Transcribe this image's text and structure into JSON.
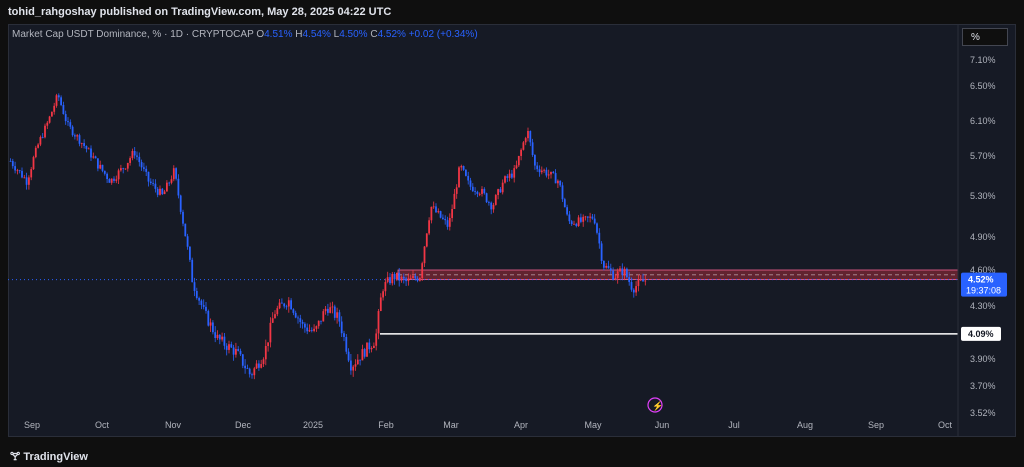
{
  "header": {
    "published_text": "tohid_rahgoshay published on TradingView.com, May 28, 2025 04:22 UTC"
  },
  "legend": {
    "symbol": "Market Cap USDT Dominance, % · 1D · CRYPTOCAP",
    "o_label": "O",
    "o_val": "4.51%",
    "h_label": "H",
    "h_val": "4.54%",
    "l_label": "L",
    "l_val": "4.50%",
    "c_label": "C",
    "c_val": "4.52% +0.02 (+0.34%)"
  },
  "scale_button": "%",
  "footer": {
    "brand": "TradingView"
  },
  "colors": {
    "up": "#2962ff",
    "down": "#f23645",
    "bg": "#161a25",
    "zone": "#f23645",
    "line": "#ffffff"
  },
  "chart_data": {
    "type": "candlestick",
    "title": "Market Cap USDT Dominance, % · 1D · CRYPTOCAP",
    "y_ticks": [
      "7.10%",
      "6.50%",
      "6.10%",
      "5.70%",
      "5.30%",
      "4.90%",
      "4.60%",
      "4.30%",
      "3.90%",
      "3.70%",
      "3.52%"
    ],
    "y_range": [
      3.52,
      7.1
    ],
    "x_ticks": [
      "Sep",
      "Oct",
      "Nov",
      "Dec",
      "2025",
      "Feb",
      "Mar",
      "Apr",
      "May",
      "Jun",
      "Jul",
      "Aug",
      "Sep",
      "Oct"
    ],
    "close_path": [
      {
        "x": "Aug 27",
        "y": 5.65
      },
      {
        "x": "Sep 3",
        "y": 5.45
      },
      {
        "x": "Sep 8",
        "y": 5.85
      },
      {
        "x": "Sep 12",
        "y": 6.1
      },
      {
        "x": "Sep 16",
        "y": 6.4
      },
      {
        "x": "Sep 20",
        "y": 6.05
      },
      {
        "x": "Sep 26",
        "y": 5.85
      },
      {
        "x": "Oct 3",
        "y": 5.6
      },
      {
        "x": "Oct 8",
        "y": 5.45
      },
      {
        "x": "Oct 14",
        "y": 5.6
      },
      {
        "x": "Oct 18",
        "y": 5.75
      },
      {
        "x": "Oct 24",
        "y": 5.45
      },
      {
        "x": "Oct 30",
        "y": 5.3
      },
      {
        "x": "Nov 5",
        "y": 5.55
      },
      {
        "x": "Nov 10",
        "y": 4.9
      },
      {
        "x": "Nov 13",
        "y": 4.5
      },
      {
        "x": "Nov 18",
        "y": 4.25
      },
      {
        "x": "Nov 24",
        "y": 4.05
      },
      {
        "x": "Dec 2",
        "y": 3.95
      },
      {
        "x": "Dec 8",
        "y": 3.78
      },
      {
        "x": "Dec 14",
        "y": 3.95
      },
      {
        "x": "Dec 18",
        "y": 4.25
      },
      {
        "x": "Dec 24",
        "y": 4.35
      },
      {
        "x": "Dec 30",
        "y": 4.15
      },
      {
        "x": "Jan 5",
        "y": 4.1
      },
      {
        "x": "Jan 10",
        "y": 4.3
      },
      {
        "x": "Jan 15",
        "y": 4.2
      },
      {
        "x": "Jan 20",
        "y": 3.85
      },
      {
        "x": "Jan 25",
        "y": 3.95
      },
      {
        "x": "Jan 30",
        "y": 4.05
      },
      {
        "x": "Feb 3",
        "y": 4.45
      },
      {
        "x": "Feb 8",
        "y": 4.55
      },
      {
        "x": "Feb 14",
        "y": 4.5
      },
      {
        "x": "Feb 20",
        "y": 4.55
      },
      {
        "x": "Feb 25",
        "y": 5.2
      },
      {
        "x": "Mar 3",
        "y": 5.0
      },
      {
        "x": "Mar 8",
        "y": 5.6
      },
      {
        "x": "Mar 12",
        "y": 5.4
      },
      {
        "x": "Mar 17",
        "y": 5.35
      },
      {
        "x": "Mar 22",
        "y": 5.2
      },
      {
        "x": "Mar 27",
        "y": 5.45
      },
      {
        "x": "Apr 2",
        "y": 5.55
      },
      {
        "x": "Apr 7",
        "y": 6.0
      },
      {
        "x": "Apr 10",
        "y": 5.6
      },
      {
        "x": "Apr 14",
        "y": 5.55
      },
      {
        "x": "Apr 20",
        "y": 5.45
      },
      {
        "x": "Apr 24",
        "y": 5.05
      },
      {
        "x": "Apr 30",
        "y": 5.05
      },
      {
        "x": "May 5",
        "y": 5.1
      },
      {
        "x": "May 9",
        "y": 4.65
      },
      {
        "x": "May 14",
        "y": 4.55
      },
      {
        "x": "May 18",
        "y": 4.6
      },
      {
        "x": "May 22",
        "y": 4.45
      },
      {
        "x": "May 28",
        "y": 4.52
      }
    ],
    "annotations": {
      "resistance_zone": [
        4.52,
        4.6
      ],
      "support_line": 4.09,
      "current_price": "4.52%",
      "countdown": "19:37:08",
      "support_label": "4.09%"
    }
  }
}
